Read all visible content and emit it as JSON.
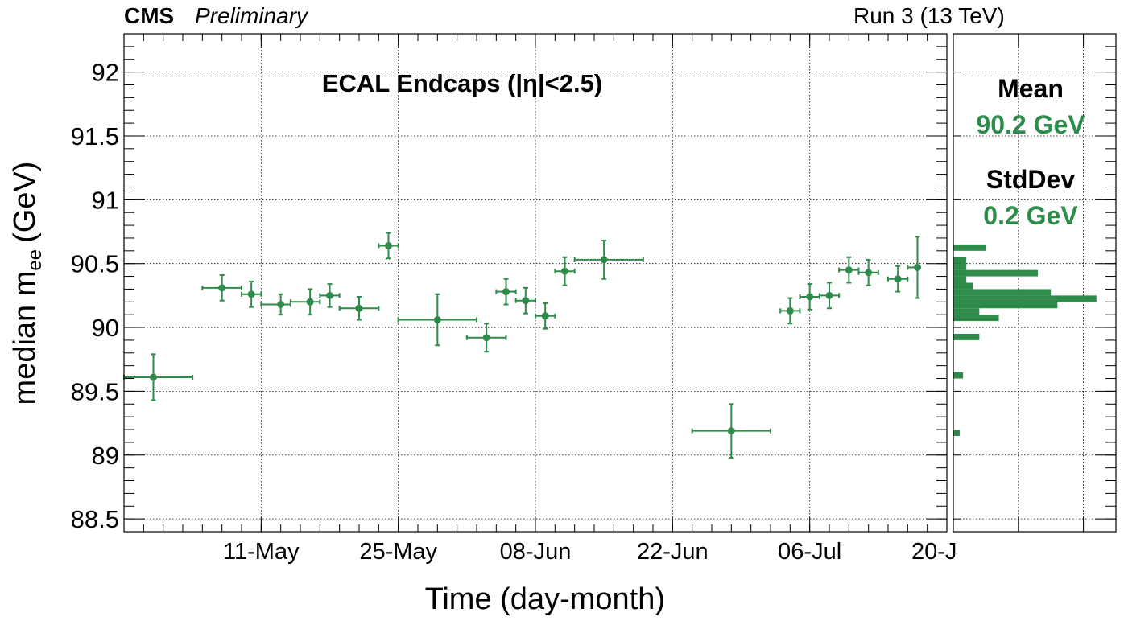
{
  "header": {
    "experiment": "CMS",
    "status": "Preliminary",
    "run": "Run 3 (13 TeV)"
  },
  "chart_data": {
    "type": "scatter",
    "title": "ECAL Endcaps (|η|<2.5)",
    "xlabel": "Time (day-month)",
    "ylabel": "median m",
    "ylabel_subscript": "ee",
    "ylabel_unit": "(GeV)",
    "ylim": [
      88.4,
      92.3
    ],
    "yticks": [
      "88.5",
      "89",
      "89.5",
      "90",
      "90.5",
      "91",
      "91.5",
      "92"
    ],
    "xlim": [
      "2022-04-27",
      "2022-07-20"
    ],
    "xticks": [
      {
        "date": "2022-05-11",
        "label": "11-May"
      },
      {
        "date": "2022-05-25",
        "label": "25-May"
      },
      {
        "date": "2022-06-08",
        "label": "08-Jun"
      },
      {
        "date": "2022-06-22",
        "label": "22-Jun"
      },
      {
        "date": "2022-07-06",
        "label": "06-Jul"
      },
      {
        "date": "2022-07-20",
        "label": "20-J"
      }
    ],
    "grid": true,
    "color": "#2e8b4a",
    "points": [
      {
        "x": "2022-04-30",
        "x_low": "2022-04-27",
        "x_high": "2022-05-04",
        "y": 89.61,
        "y_err": 0.18
      },
      {
        "x": "2022-05-07",
        "x_low": "2022-05-05",
        "x_high": "2022-05-09",
        "y": 90.31,
        "y_err": 0.1
      },
      {
        "x": "2022-05-10",
        "x_low": "2022-05-09",
        "x_high": "2022-05-11",
        "y": 90.26,
        "y_err": 0.1
      },
      {
        "x": "2022-05-13",
        "x_low": "2022-05-11",
        "x_high": "2022-05-14",
        "y": 90.18,
        "y_err": 0.08
      },
      {
        "x": "2022-05-16",
        "x_low": "2022-05-14",
        "x_high": "2022-05-17",
        "y": 90.2,
        "y_err": 0.1
      },
      {
        "x": "2022-05-18",
        "x_low": "2022-05-17",
        "x_high": "2022-05-19",
        "y": 90.25,
        "y_err": 0.09
      },
      {
        "x": "2022-05-21",
        "x_low": "2022-05-19",
        "x_high": "2022-05-23",
        "y": 90.15,
        "y_err": 0.09
      },
      {
        "x": "2022-05-24",
        "x_low": "2022-05-23",
        "x_high": "2022-05-25",
        "y": 90.64,
        "y_err": 0.1
      },
      {
        "x": "2022-05-29",
        "x_low": "2022-05-25",
        "x_high": "2022-06-02",
        "y": 90.06,
        "y_err": 0.2
      },
      {
        "x": "2022-06-03",
        "x_low": "2022-06-01",
        "x_high": "2022-06-05",
        "y": 89.92,
        "y_err": 0.11
      },
      {
        "x": "2022-06-05",
        "x_low": "2022-06-04",
        "x_high": "2022-06-06",
        "y": 90.28,
        "y_err": 0.1
      },
      {
        "x": "2022-06-07",
        "x_low": "2022-06-06",
        "x_high": "2022-06-08",
        "y": 90.21,
        "y_err": 0.1
      },
      {
        "x": "2022-06-09",
        "x_low": "2022-06-08",
        "x_high": "2022-06-10",
        "y": 90.09,
        "y_err": 0.1
      },
      {
        "x": "2022-06-11",
        "x_low": "2022-06-10",
        "x_high": "2022-06-12",
        "y": 90.44,
        "y_err": 0.11
      },
      {
        "x": "2022-06-15",
        "x_low": "2022-06-12",
        "x_high": "2022-06-19",
        "y": 90.53,
        "y_err": 0.15
      },
      {
        "x": "2022-06-28",
        "x_low": "2022-06-24",
        "x_high": "2022-07-02",
        "y": 89.19,
        "y_err": 0.21
      },
      {
        "x": "2022-07-04",
        "x_low": "2022-07-03",
        "x_high": "2022-07-05",
        "y": 90.13,
        "y_err": 0.1
      },
      {
        "x": "2022-07-06",
        "x_low": "2022-07-05",
        "x_high": "2022-07-07",
        "y": 90.24,
        "y_err": 0.1
      },
      {
        "x": "2022-07-08",
        "x_low": "2022-07-07",
        "x_high": "2022-07-09",
        "y": 90.25,
        "y_err": 0.1
      },
      {
        "x": "2022-07-10",
        "x_low": "2022-07-09",
        "x_high": "2022-07-11",
        "y": 90.45,
        "y_err": 0.1
      },
      {
        "x": "2022-07-12",
        "x_low": "2022-07-11",
        "x_high": "2022-07-13",
        "y": 90.43,
        "y_err": 0.1
      },
      {
        "x": "2022-07-15",
        "x_low": "2022-07-14",
        "x_high": "2022-07-16",
        "y": 90.38,
        "y_err": 0.1
      },
      {
        "x": "2022-07-17",
        "x_low": "2022-07-16",
        "x_high": "2022-07-17",
        "y": 90.47,
        "y_err": 0.24
      }
    ],
    "side_histogram": {
      "type": "horizontal-histogram",
      "color": "#2e8b4a",
      "bin_width": 0.05,
      "xlim": [
        0,
        2.5
      ],
      "bins": [
        {
          "y": 89.175,
          "count": 0.1
        },
        {
          "y": 89.625,
          "count": 0.15
        },
        {
          "y": 89.925,
          "count": 0.4
        },
        {
          "y": 90.075,
          "count": 0.7
        },
        {
          "y": 90.125,
          "count": 0.4
        },
        {
          "y": 90.175,
          "count": 1.6
        },
        {
          "y": 90.225,
          "count": 2.2
        },
        {
          "y": 90.275,
          "count": 1.5
        },
        {
          "y": 90.325,
          "count": 0.3
        },
        {
          "y": 90.375,
          "count": 0.2
        },
        {
          "y": 90.425,
          "count": 1.3
        },
        {
          "y": 90.475,
          "count": 0.2
        },
        {
          "y": 90.525,
          "count": 0.2
        },
        {
          "y": 90.625,
          "count": 0.5
        }
      ],
      "stats": [
        {
          "label": "Mean",
          "value": "90.2 GeV"
        },
        {
          "label": "StdDev",
          "value": "0.2 GeV"
        }
      ]
    }
  }
}
